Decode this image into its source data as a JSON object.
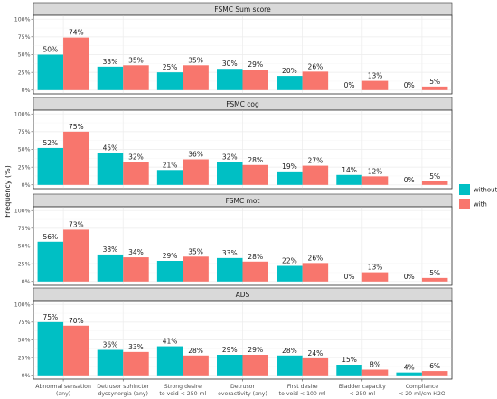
{
  "chart_data": {
    "type": "bar",
    "ylabel": "Frequency (%)",
    "y_ticks": [
      "0%",
      "25%",
      "50%",
      "75%",
      "100%"
    ],
    "ylim": [
      0,
      100
    ],
    "legend_position": "right",
    "categories": [
      [
        "Abnormal sensation",
        "(any)"
      ],
      [
        "Detrusor sphincter",
        "dyssynergia (any)"
      ],
      [
        "Strong desire",
        "to void < 250 ml"
      ],
      [
        "Detrusor",
        "overactivity (any)"
      ],
      [
        "First desire",
        "to void < 100 ml"
      ],
      [
        "Bladder capacity",
        "< 250 ml"
      ],
      [
        "Compliance",
        "< 20 ml/cm H2O"
      ]
    ],
    "series_colors": {
      "without": "#00bfc4",
      "with": "#f8766d"
    },
    "legend": [
      "without",
      "with"
    ],
    "panels": [
      {
        "title": "FSMC Sum score",
        "series": [
          {
            "name": "without",
            "values": [
              50,
              33,
              25,
              30,
              20,
              0,
              0
            ],
            "labels": [
              "50%",
              "33%",
              "25%",
              "30%",
              "20%",
              "0%",
              "0%"
            ]
          },
          {
            "name": "with",
            "values": [
              74,
              35,
              35,
              29,
              26,
              13,
              5
            ],
            "labels": [
              "74%",
              "35%",
              "35%",
              "29%",
              "26%",
              "13%",
              "5%"
            ]
          }
        ]
      },
      {
        "title": "FSMC cog",
        "series": [
          {
            "name": "without",
            "values": [
              52,
              45,
              21,
              32,
              19,
              14,
              0
            ],
            "labels": [
              "52%",
              "45%",
              "21%",
              "32%",
              "19%",
              "14%",
              "0%"
            ]
          },
          {
            "name": "with",
            "values": [
              75,
              32,
              36,
              28,
              27,
              12,
              5
            ],
            "labels": [
              "75%",
              "32%",
              "36%",
              "28%",
              "27%",
              "12%",
              "5%"
            ]
          }
        ]
      },
      {
        "title": "FSMC mot",
        "series": [
          {
            "name": "without",
            "values": [
              56,
              38,
              29,
              33,
              22,
              0,
              0
            ],
            "labels": [
              "56%",
              "38%",
              "29%",
              "33%",
              "22%",
              "0%",
              "0%"
            ]
          },
          {
            "name": "with",
            "values": [
              73,
              34,
              35,
              28,
              26,
              13,
              5
            ],
            "labels": [
              "73%",
              "34%",
              "35%",
              "28%",
              "26%",
              "13%",
              "5%"
            ]
          }
        ]
      },
      {
        "title": "ADS",
        "series": [
          {
            "name": "without",
            "values": [
              75,
              36,
              41,
              29,
              28,
              15,
              4
            ],
            "labels": [
              "75%",
              "36%",
              "41%",
              "29%",
              "28%",
              "15%",
              "4%"
            ]
          },
          {
            "name": "with",
            "values": [
              70,
              33,
              28,
              29,
              24,
              8,
              6
            ],
            "labels": [
              "70%",
              "33%",
              "28%",
              "29%",
              "24%",
              "8%",
              "6%"
            ]
          }
        ]
      }
    ]
  }
}
